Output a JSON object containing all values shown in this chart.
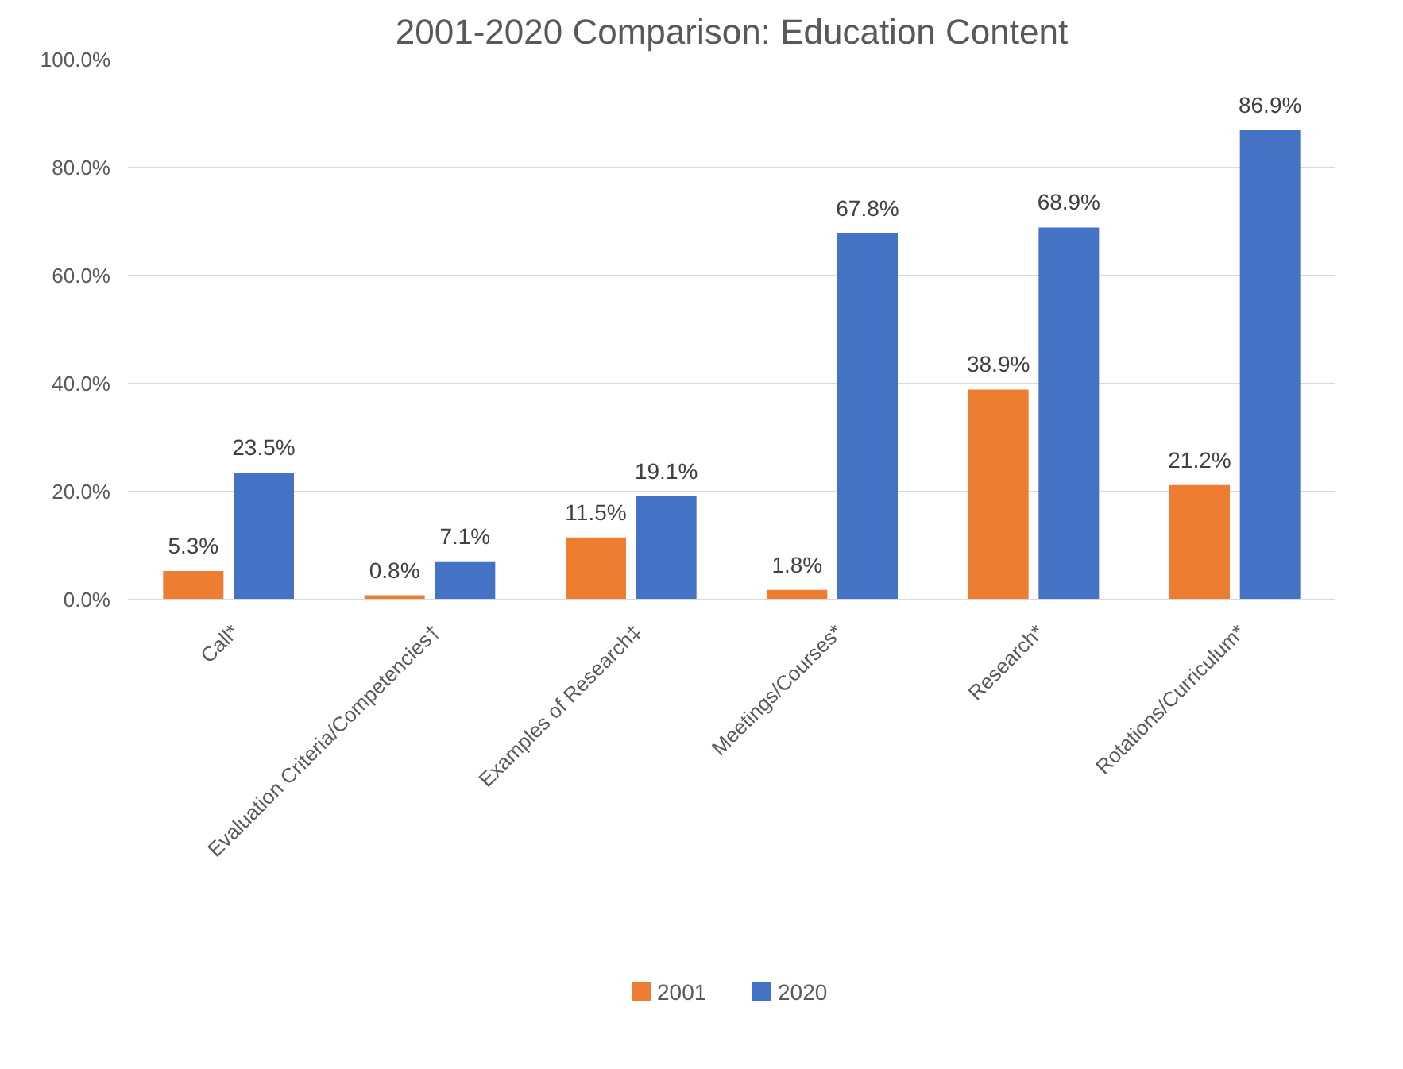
{
  "chart_data": {
    "type": "bar",
    "title": "2001-2020 Comparison: Education Content",
    "categories": [
      "Call*",
      "Evaluation Criteria/Competencies†",
      "Examples of Research‡",
      "Meetings/Courses*",
      "Research*",
      "Rotations/Curriculum*"
    ],
    "series": [
      {
        "name": "2001",
        "color": "#ed7d31",
        "values": [
          5.3,
          0.8,
          11.5,
          1.8,
          38.9,
          21.2
        ],
        "value_labels": [
          "5.3%",
          "0.8%",
          "11.5%",
          "1.8%",
          "38.9%",
          "21.2%"
        ]
      },
      {
        "name": "2020",
        "color": "#4472c4",
        "values": [
          23.5,
          7.1,
          19.1,
          67.8,
          68.9,
          86.9
        ],
        "value_labels": [
          "23.5%",
          "7.1%",
          "19.1%",
          "67.8%",
          "68.9%",
          "86.9%"
        ]
      }
    ],
    "ylim": [
      0,
      100
    ],
    "yticks": [
      {
        "value": 0,
        "label": "0.0%"
      },
      {
        "value": 20,
        "label": "20.0%"
      },
      {
        "value": 40,
        "label": "40.0%"
      },
      {
        "value": 60,
        "label": "60.0%"
      },
      {
        "value": 80,
        "label": "80.0%"
      },
      {
        "value": 100,
        "label": "100.0%"
      }
    ],
    "grid": "y",
    "legend": "bottom"
  }
}
